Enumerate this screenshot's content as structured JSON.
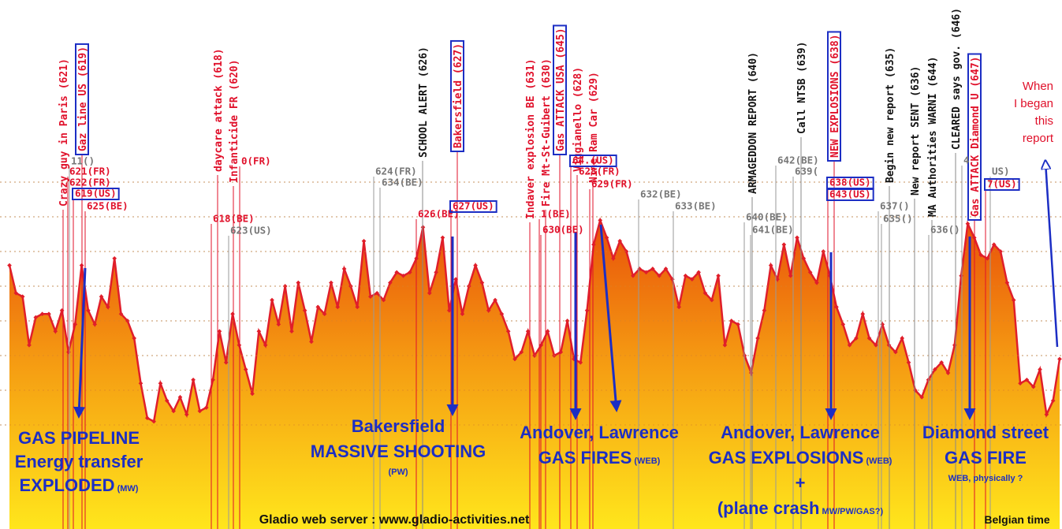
{
  "chart_data": {
    "type": "area",
    "color": "#e01e2a",
    "ylim": [
      0,
      15
    ],
    "yticks": [
      3,
      4,
      5,
      6,
      7,
      8,
      9,
      10
    ],
    "grid": true,
    "values": [
      7.6,
      6.8,
      6.7,
      5.3,
      6.1,
      6.2,
      6.2,
      5.7,
      6.3,
      5.1,
      5.9,
      7.6,
      6.3,
      5.9,
      6.7,
      6.4,
      7.8,
      6.2,
      6.0,
      5.5,
      4.2,
      3.2,
      3.1,
      4.2,
      3.7,
      3.4,
      3.8,
      3.3,
      4.3,
      3.4,
      3.5,
      4.3,
      5.7,
      4.8,
      6.2,
      5.3,
      4.6,
      3.9,
      5.7,
      5.3,
      6.6,
      5.9,
      7.0,
      5.7,
      7.1,
      6.3,
      5.4,
      6.4,
      6.2,
      7.1,
      6.4,
      7.5,
      7.0,
      6.4,
      8.3,
      6.7,
      6.8,
      6.6,
      7.1,
      7.4,
      7.3,
      7.4,
      7.8,
      8.7,
      6.8,
      7.4,
      8.4,
      6.3,
      7.2,
      6.2,
      7.0,
      7.6,
      7.1,
      6.3,
      6.6,
      6.2,
      5.7,
      4.9,
      5.1,
      5.7,
      5.0,
      5.3,
      5.7,
      5.0,
      5.1,
      6.0,
      4.9,
      4.8,
      6.3,
      8.2,
      8.9,
      8.4,
      7.8,
      8.3,
      8.0,
      7.3,
      7.5,
      7.4,
      7.5,
      7.3,
      7.5,
      7.2,
      6.4,
      7.3,
      7.2,
      7.4,
      6.8,
      6.6,
      7.3,
      5.3,
      6.0,
      5.9,
      5.0,
      4.5,
      5.5,
      6.3,
      7.6,
      7.2,
      8.2,
      7.3,
      8.4,
      7.8,
      7.4,
      7.1,
      8.0,
      7.3,
      6.4,
      5.9,
      5.3,
      5.5,
      6.2,
      5.5,
      5.3,
      5.9,
      5.3,
      5.1,
      5.5,
      4.8,
      4.0,
      3.8,
      4.3,
      4.6,
      4.8,
      4.5,
      5.3,
      7.3,
      8.8,
      8.4,
      7.9,
      7.8,
      8.2,
      8.0,
      7.1,
      6.6,
      4.2,
      4.3,
      4.1,
      4.6,
      3.3,
      3.7,
      4.9
    ],
    "event_markers": [
      {
        "label": "Crazy guy in Paris (621)",
        "color": "#e0102a"
      },
      {
        "label": "Gaz line US (619)",
        "color": "#e0102a",
        "boxed": true
      },
      {
        "label": "daycare attack (618)",
        "color": "#e0102a"
      },
      {
        "label": "Infanticide FR (620)",
        "color": "#e0102a"
      },
      {
        "label": "SCHOOL ALERT (626)",
        "color": "#111111"
      },
      {
        "label": "Bakersfield (627)",
        "color": "#e0102a",
        "boxed": true
      },
      {
        "label": "Indaver explosion BE (631)",
        "color": "#e0102a"
      },
      {
        "label": "Fire Mt-St-Guibert (630)",
        "color": "#e0102a"
      },
      {
        "label": "Gas ATTACK USA (645)",
        "color": "#e0102a",
        "boxed": true
      },
      {
        "label": "Viggianello (628)",
        "color": "#e0102a"
      },
      {
        "label": "Nine Ram Car (629)",
        "color": "#e0102a"
      },
      {
        "label": "ARMAGEDDON REPORT (640)",
        "color": "#111111"
      },
      {
        "label": "Call NTSB (639)",
        "color": "#111111"
      },
      {
        "label": "NEW EXPLOSIONS (638)",
        "color": "#e0102a",
        "boxed": true
      },
      {
        "label": "Begin new report (635)",
        "color": "#111111"
      },
      {
        "label": "New report SENT (636)",
        "color": "#111111"
      },
      {
        "label": "MA Authorities WARNI (644)",
        "color": "#111111"
      },
      {
        "label": "CLEARED says gov. (646)",
        "color": "#111111"
      },
      {
        "label": "Gas ATTACK Diamond U (647)",
        "color": "#e0102a",
        "boxed": true
      }
    ],
    "marker_labels": [
      {
        "label": "11()",
        "color": "#777777"
      },
      {
        "label": "621(FR)",
        "color": "#e0102a"
      },
      {
        "label": "622(FR)",
        "color": "#e0102a"
      },
      {
        "label": "619(US)",
        "color": "#e0102a",
        "boxed": true
      },
      {
        "label": "625(BE)",
        "color": "#e0102a"
      },
      {
        "label": "0(FR)",
        "color": "#e0102a"
      },
      {
        "label": "618(BE)",
        "color": "#e0102a"
      },
      {
        "label": "623(US)",
        "color": "#777777"
      },
      {
        "label": "624(FR)",
        "color": "#777777"
      },
      {
        "label": "634(BE)",
        "color": "#777777"
      },
      {
        "label": "626(BE)",
        "color": "#e0102a"
      },
      {
        "label": "627(US)",
        "color": "#e0102a",
        "boxed": true
      },
      {
        "label": "1(BE)",
        "color": "#e0102a"
      },
      {
        "label": "630(BE)",
        "color": "#e0102a"
      },
      {
        "label": "64.(US)",
        "color": "#e0102a",
        "boxed": true
      },
      {
        "label": "628(FR)",
        "color": "#e0102a"
      },
      {
        "label": "629(FR)",
        "color": "#e0102a"
      },
      {
        "label": "632(BE)",
        "color": "#777777"
      },
      {
        "label": "633(BE)",
        "color": "#777777"
      },
      {
        "label": "642(BE)",
        "color": "#777777"
      },
      {
        "label": "639(",
        "color": "#777777"
      },
      {
        "label": "638(US)",
        "color": "#e0102a",
        "boxed": true
      },
      {
        "label": "643(US)",
        "color": "#e0102a",
        "boxed": true
      },
      {
        "label": "640(BE)",
        "color": "#777777"
      },
      {
        "label": "641(BE)",
        "color": "#777777"
      },
      {
        "label": "637()",
        "color": "#777777"
      },
      {
        "label": "635()",
        "color": "#777777"
      },
      {
        "label": "636()",
        "color": "#777777"
      },
      {
        "label": "4",
        "color": "#777777"
      },
      {
        "label": "US)",
        "color": "#777777"
      },
      {
        "label": "7(US)",
        "color": "#e0102a",
        "boxed": true
      }
    ],
    "captions": [
      {
        "lines": [
          {
            "text": "GAS PIPELINE"
          },
          {
            "text": "Energy transfer"
          },
          {
            "text": "EXPLODED",
            "note": " (MW)"
          }
        ]
      },
      {
        "lines": [
          {
            "text": "Bakersfield"
          },
          {
            "text": "MASSIVE SHOOTING"
          },
          {
            "note": "(PW)"
          }
        ]
      },
      {
        "lines": [
          {
            "text": "Andover, Lawrence"
          },
          {
            "text": "GAS FIRES",
            "note": " (WEB)"
          }
        ]
      },
      {
        "lines": [
          {
            "text": "Andover, Lawrence"
          },
          {
            "text": "GAS EXPLOSIONS",
            "note": " (WEB)"
          },
          {
            "text": "+"
          },
          {
            "text": "(plane crash",
            "note": " MW/PW/GAS?)"
          }
        ]
      },
      {
        "lines": [
          {
            "text": "Diamond street"
          },
          {
            "text": "GAS FIRE"
          },
          {
            "note": "WEB, physically ?"
          }
        ]
      }
    ],
    "side_note": [
      "When",
      "I began",
      "this",
      "report"
    ],
    "source": "Gladio web server : www.gladio-activities.net",
    "timezone": "Belgian time"
  }
}
